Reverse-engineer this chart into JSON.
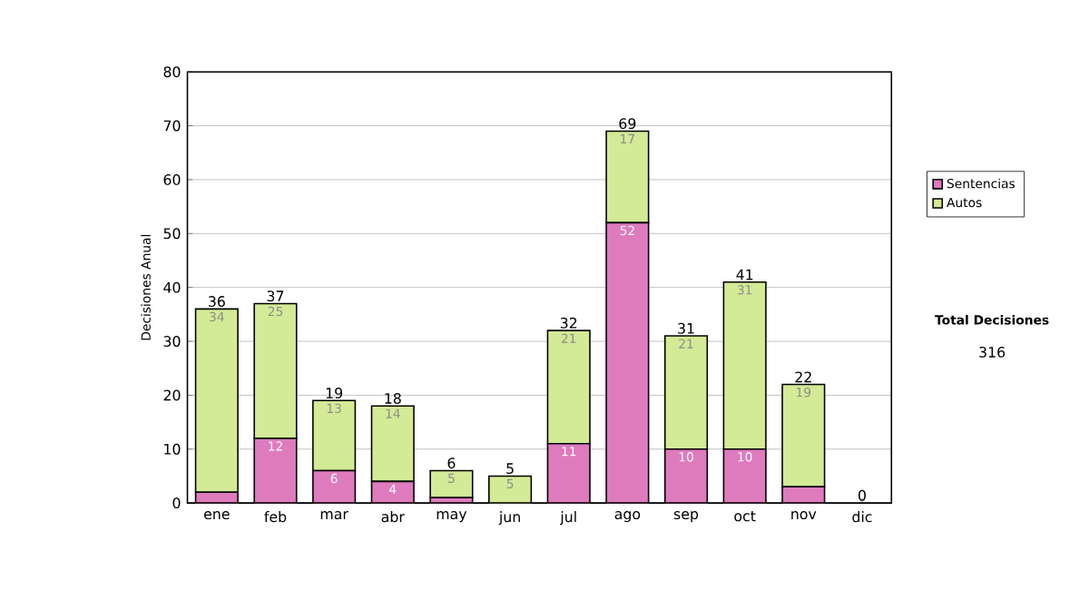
{
  "chart_data": {
    "type": "bar",
    "stacked": true,
    "ylabel": "Decisiones Anual",
    "categories": [
      "ene",
      "feb",
      "mar",
      "abr",
      "may",
      "jun",
      "jul",
      "ago",
      "sep",
      "oct",
      "nov",
      "dic"
    ],
    "series": [
      {
        "name": "Sentencias",
        "color": "#de7bbd",
        "values": [
          2,
          12,
          6,
          4,
          1,
          0,
          11,
          52,
          10,
          10,
          3,
          0
        ],
        "value_labels": [
          null,
          "12",
          "6",
          "4",
          null,
          null,
          "11",
          "52",
          "10",
          "10",
          null,
          null
        ]
      },
      {
        "name": "Autos",
        "color": "#d3ea96",
        "values": [
          34,
          25,
          13,
          14,
          5,
          5,
          21,
          17,
          21,
          31,
          19,
          0
        ],
        "value_labels": [
          "34",
          "25",
          "13",
          "14",
          "5",
          "5",
          "21",
          "17",
          "21",
          "31",
          "19",
          null
        ]
      }
    ],
    "totals": [
      "36",
      "37",
      "19",
      "18",
      "6",
      "5",
      "32",
      "69",
      "31",
      "41",
      "22",
      "0"
    ],
    "ylim": [
      0,
      80
    ],
    "yticks": [
      0,
      10,
      20,
      30,
      40,
      50,
      60,
      70,
      80
    ],
    "grid": "y",
    "legend": "right",
    "annotations": [
      "Total Decisiones",
      "316"
    ]
  }
}
